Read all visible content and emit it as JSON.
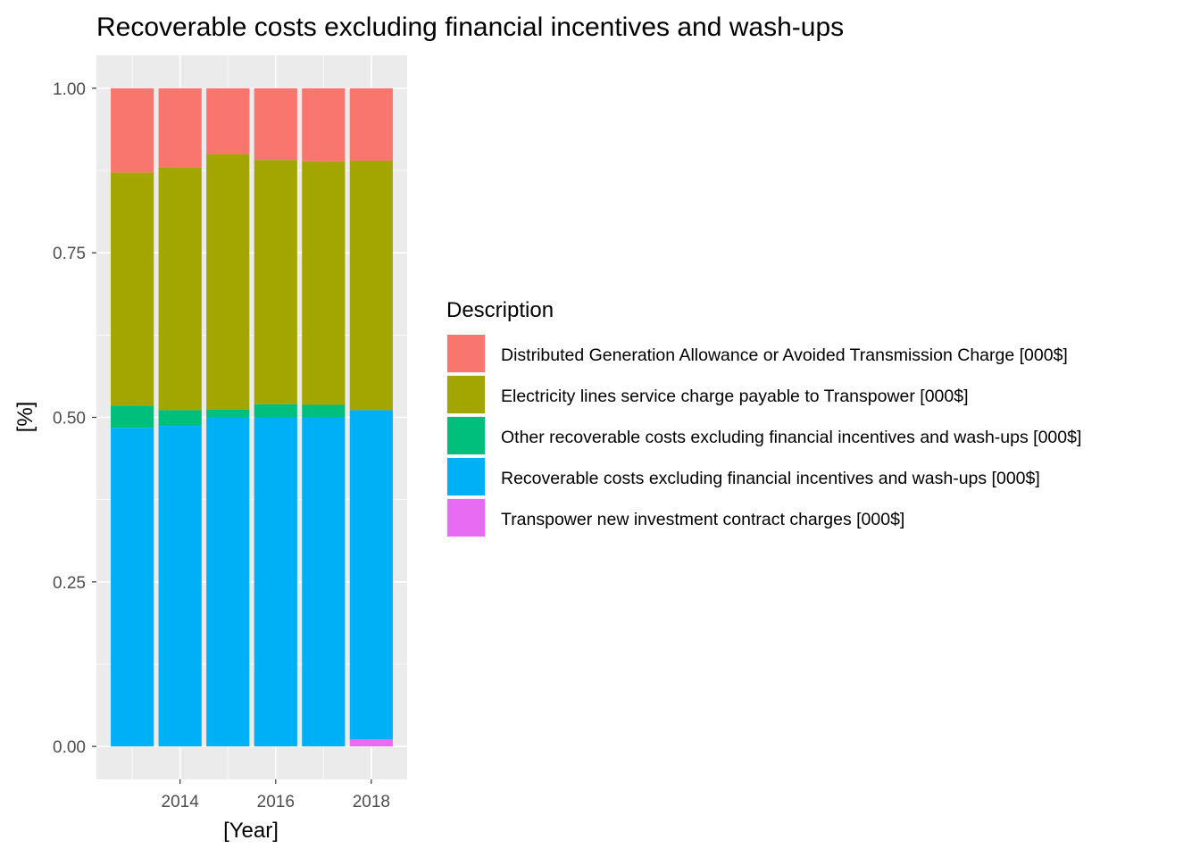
{
  "chart_data": {
    "type": "bar",
    "stacked": true,
    "title": "Recoverable costs excluding financial incentives and wash-ups",
    "xlabel": "[Year]",
    "ylabel": "[%]",
    "x": [
      2013,
      2014,
      2015,
      2016,
      2017,
      2018
    ],
    "xlim": [
      2012.25,
      2018.75
    ],
    "ylim": [
      -0.05,
      1.05
    ],
    "x_ticks": [
      2014,
      2016,
      2018
    ],
    "x_tick_labels": [
      "2014",
      "2016",
      "2018"
    ],
    "y_ticks": [
      0,
      0.25,
      0.5,
      0.75,
      1.0
    ],
    "y_tick_labels": [
      "0.00",
      "0.25",
      "0.50",
      "0.75",
      "1.00"
    ],
    "grid": true,
    "legend_title": "Description",
    "legend_position": "right",
    "series": [
      {
        "name": "Distributed Generation Allowance or Avoided Transmission Charge [000$]",
        "color": "#F8766D",
        "values": [
          0.128,
          0.12,
          0.1,
          0.109,
          0.111,
          0.11
        ]
      },
      {
        "name": "Electricity lines service charge payable to Transpower [000$]",
        "color": "#A3A500",
        "values": [
          0.354,
          0.369,
          0.388,
          0.371,
          0.37,
          0.379
        ]
      },
      {
        "name": "Other recoverable costs excluding financial incentives and wash-ups [000$]",
        "color": "#00BF7D",
        "values": [
          0.034,
          0.024,
          0.012,
          0.02,
          0.019,
          0.0
        ]
      },
      {
        "name": "Recoverable costs excluding financial incentives and wash-ups [000$]",
        "color": "#00B0F6",
        "values": [
          0.484,
          0.487,
          0.5,
          0.5,
          0.5,
          0.5
        ]
      },
      {
        "name": "Transpower new investment contract charges [000$]",
        "color": "#E76BF3",
        "values": [
          0.0,
          0.0,
          0.0,
          0.0,
          0.0,
          0.011
        ]
      }
    ]
  }
}
